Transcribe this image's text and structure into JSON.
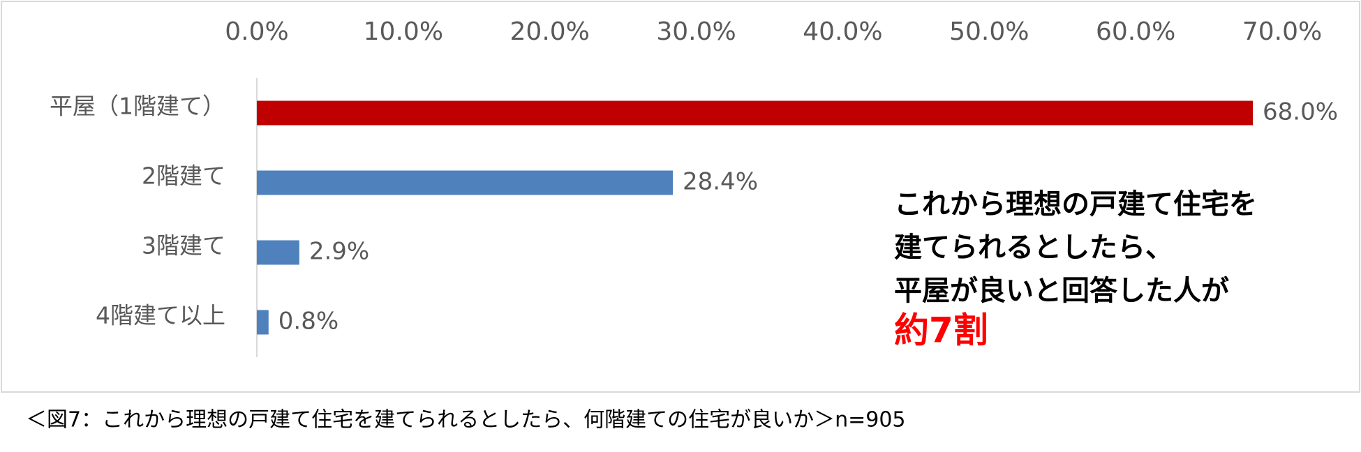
{
  "chart_data": {
    "type": "bar",
    "orientation": "horizontal",
    "categories": [
      "平屋（1階建て）",
      "2階建て",
      "3階建て",
      "4階建て以上"
    ],
    "values": [
      68.0,
      28.4,
      2.9,
      0.8
    ],
    "value_labels": [
      "68.0%",
      "28.4%",
      "2.9%",
      "0.8%"
    ],
    "colors": [
      "#c00000",
      "#4f81bd",
      "#4f81bd",
      "#4f81bd"
    ],
    "xlim": [
      0,
      70
    ],
    "xticks": [
      {
        "value": 0,
        "label": "0.0%"
      },
      {
        "value": 10,
        "label": "10.0%"
      },
      {
        "value": 20,
        "label": "20.0%"
      },
      {
        "value": 30,
        "label": "30.0%"
      },
      {
        "value": 40,
        "label": "40.0%"
      },
      {
        "value": 50,
        "label": "50.0%"
      },
      {
        "value": 60,
        "label": "60.0%"
      },
      {
        "value": 70,
        "label": "70.0%"
      }
    ],
    "annotation_lines": [
      "これから理想の戸建て住宅を",
      "建てられるとしたら、",
      "平屋が良いと回答した人が"
    ],
    "annotation_highlight": "約7割",
    "annotation_highlight_color": "#ff0000",
    "caption": "＜図7：これから理想の戸建て住宅を建てられるとしたら、何階建ての住宅が良いか＞n=905"
  }
}
